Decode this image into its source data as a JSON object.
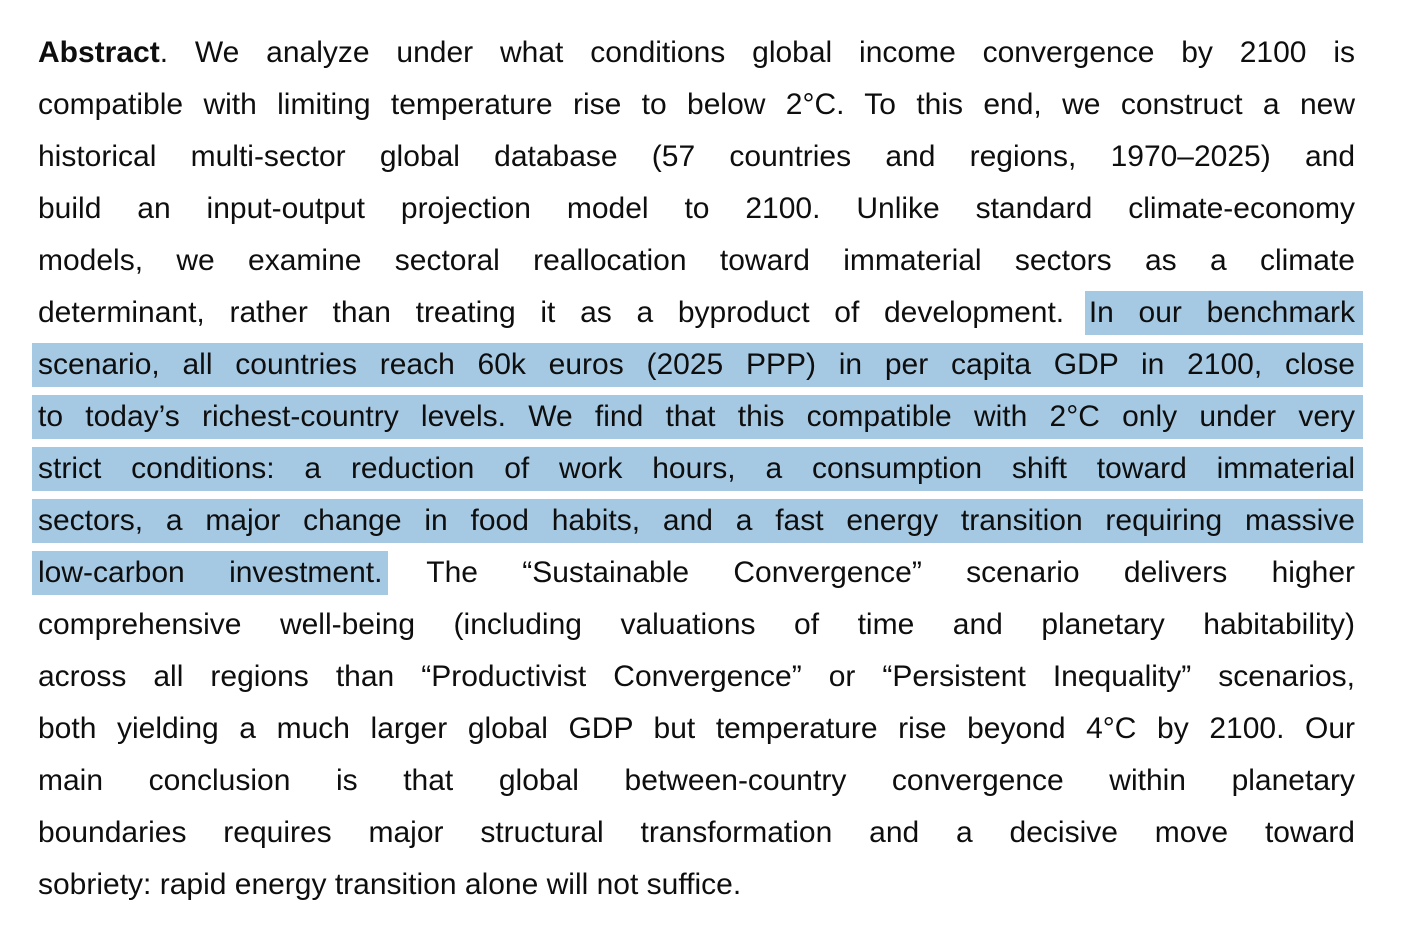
{
  "document": {
    "type": "paper-abstract",
    "text_color": "#0e0e0e",
    "highlight_color": "#a5c8e3",
    "heading_label": "Abstract",
    "highlighted_passage": "In our benchmark scenario, all countries reach 60k euros (2025 PPP) in per capita GDP in 2100, close to today’s richest-country levels. We find that this compatible with 2°C only under very strict conditions: a reduction of work hours, a consumption shift toward immaterial sectors, a major change in food habits, and a fast energy transition requiring massive low-carbon investment.",
    "lines": [
      {
        "justify": true,
        "segments": [
          {
            "text": "Abstract",
            "bold": true
          },
          {
            "text": ". We analyze under what conditions global income convergence by 2100 is"
          }
        ]
      },
      {
        "justify": true,
        "segments": [
          {
            "text": "compatible with limiting temperature rise to below 2°C. To this end, we construct a new"
          }
        ]
      },
      {
        "justify": true,
        "segments": [
          {
            "text": "historical multi-sector global database (57 countries and regions, 1970–2025) and"
          }
        ]
      },
      {
        "justify": true,
        "segments": [
          {
            "text": "build an input-output projection model to 2100. Unlike standard climate-economy"
          }
        ]
      },
      {
        "justify": true,
        "segments": [
          {
            "text": "models, we examine sectoral reallocation toward immaterial sectors as a climate"
          }
        ]
      },
      {
        "justify": true,
        "segments": [
          {
            "text": "determinant, rather than treating it as a byproduct of development. "
          },
          {
            "text": "In our benchmark",
            "hl": true
          }
        ]
      },
      {
        "justify": true,
        "segments": [
          {
            "text": "scenario, all countries reach 60k euros (2025 PPP) in per capita GDP in 2100, close",
            "hl": true
          }
        ]
      },
      {
        "justify": true,
        "segments": [
          {
            "text": "to today’s richest-country levels. We find that this compatible with 2°C only under very",
            "hl": true
          }
        ]
      },
      {
        "justify": true,
        "segments": [
          {
            "text": "strict conditions: a reduction of work hours, a consumption shift toward immaterial",
            "hl": true
          }
        ]
      },
      {
        "justify": true,
        "segments": [
          {
            "text": "sectors, a major change in food habits, and a fast energy transition requiring massive",
            "hl": true
          }
        ]
      },
      {
        "justify": true,
        "segments": [
          {
            "text": "low-carbon investment.",
            "hl": true
          },
          {
            "text": " The “Sustainable Convergence” scenario delivers higher"
          }
        ]
      },
      {
        "justify": true,
        "segments": [
          {
            "text": "comprehensive well-being (including valuations of time and planetary habitability)"
          }
        ]
      },
      {
        "justify": true,
        "segments": [
          {
            "text": "across all regions than “Productivist Convergence” or “Persistent Inequality” scenarios,"
          }
        ]
      },
      {
        "justify": true,
        "segments": [
          {
            "text": "both yielding a much larger global GDP but temperature rise beyond 4°C by 2100. Our"
          }
        ]
      },
      {
        "justify": true,
        "segments": [
          {
            "text": "main conclusion is that global between-country convergence within planetary"
          }
        ]
      },
      {
        "justify": true,
        "segments": [
          {
            "text": "boundaries requires major structural transformation and a decisive move toward"
          }
        ]
      },
      {
        "justify": false,
        "segments": [
          {
            "text": "sobriety: rapid energy transition alone will not suffice."
          }
        ]
      }
    ]
  }
}
